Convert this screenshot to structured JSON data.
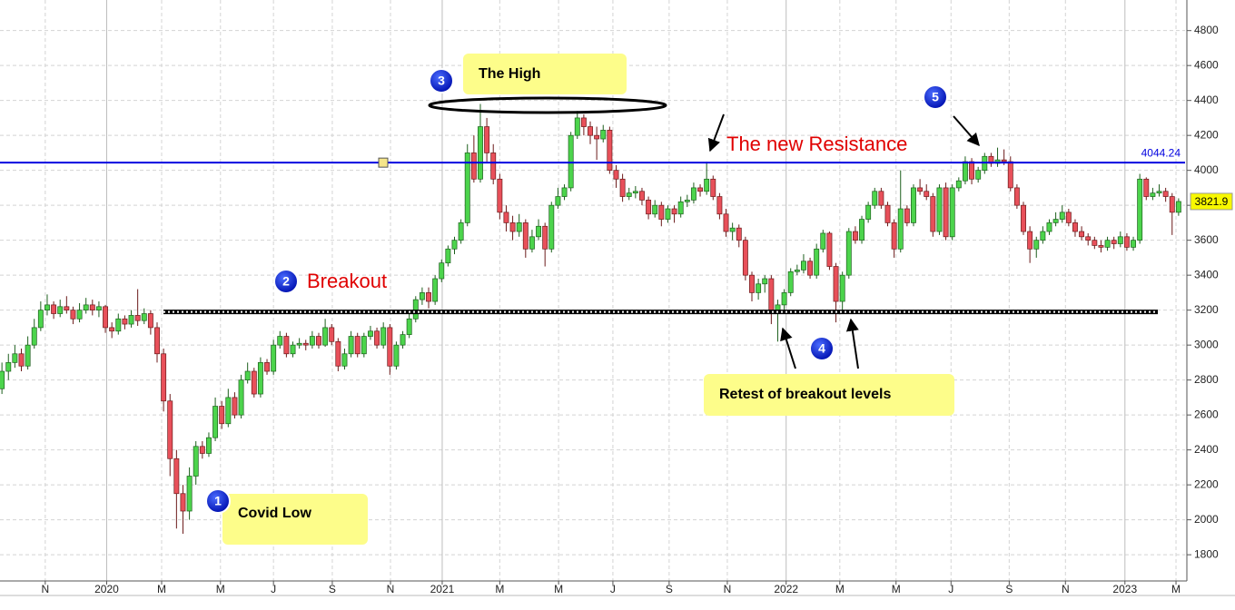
{
  "chart_data": {
    "type": "candlestick",
    "ylim": [
      1650,
      4975
    ],
    "yticks": [
      1800,
      2000,
      2200,
      2400,
      2600,
      2800,
      3000,
      3200,
      3400,
      3600,
      3800,
      4000,
      4200,
      4400,
      4600,
      4800
    ],
    "xlim": [
      -0.3,
      183
    ],
    "xticks": [
      {
        "value": 6.7,
        "label": "N"
      },
      {
        "value": 16.2,
        "label": "2020"
      },
      {
        "value": 24.7,
        "label": "M"
      },
      {
        "value": 33.8,
        "label": "M"
      },
      {
        "value": 42,
        "label": "J"
      },
      {
        "value": 51.1,
        "label": "S"
      },
      {
        "value": 60.1,
        "label": "N"
      },
      {
        "value": 68.1,
        "label": "2021"
      },
      {
        "value": 77,
        "label": "M"
      },
      {
        "value": 86.1,
        "label": "M"
      },
      {
        "value": 94.5,
        "label": "J"
      },
      {
        "value": 103.2,
        "label": "S"
      },
      {
        "value": 112.2,
        "label": "N"
      },
      {
        "value": 121.3,
        "label": "2022"
      },
      {
        "value": 129.6,
        "label": "M"
      },
      {
        "value": 138.3,
        "label": "M"
      },
      {
        "value": 146.8,
        "label": "J"
      },
      {
        "value": 155.8,
        "label": "S"
      },
      {
        "value": 164.5,
        "label": "N"
      },
      {
        "value": 173.7,
        "label": "2023"
      },
      {
        "value": 181.6,
        "label": "M"
      }
    ],
    "grid": true,
    "up_color": "#4cd44c",
    "down_color": "#e8505a",
    "resistance": 4044.24,
    "resistance_color": "#0000e0",
    "support": 3190,
    "annotations": [
      "The High",
      "Covid Low",
      "Breakout",
      "The new Resistance",
      "Retest of breakout levels"
    ],
    "markers": [
      "1",
      "2",
      "3",
      "4",
      "5"
    ],
    "ohlc": [
      [
        2750,
        2900,
        2720,
        2850
      ],
      [
        2850,
        2950,
        2800,
        2900
      ],
      [
        2900,
        3000,
        2870,
        2950
      ],
      [
        2950,
        2980,
        2850,
        2880
      ],
      [
        2880,
        3050,
        2860,
        3000
      ],
      [
        3000,
        3150,
        2980,
        3100
      ],
      [
        3100,
        3250,
        3080,
        3200
      ],
      [
        3200,
        3290,
        3170,
        3230
      ],
      [
        3230,
        3250,
        3150,
        3180
      ],
      [
        3180,
        3260,
        3160,
        3220
      ],
      [
        3220,
        3280,
        3180,
        3200
      ],
      [
        3200,
        3220,
        3120,
        3150
      ],
      [
        3150,
        3240,
        3130,
        3200
      ],
      [
        3200,
        3270,
        3180,
        3230
      ],
      [
        3230,
        3260,
        3170,
        3200
      ],
      [
        3200,
        3250,
        3160,
        3220
      ],
      [
        3220,
        3230,
        3070,
        3100
      ],
      [
        3100,
        3130,
        3040,
        3080
      ],
      [
        3080,
        3180,
        3060,
        3150
      ],
      [
        3150,
        3170,
        3090,
        3120
      ],
      [
        3120,
        3200,
        3100,
        3170
      ],
      [
        3170,
        3320,
        3110,
        3140
      ],
      [
        3140,
        3210,
        3120,
        3180
      ],
      [
        3180,
        3200,
        3060,
        3100
      ],
      [
        3100,
        3130,
        2900,
        2950
      ],
      [
        2950,
        2980,
        2620,
        2680
      ],
      [
        2680,
        2720,
        2250,
        2350
      ],
      [
        2350,
        2400,
        1950,
        2150
      ],
      [
        2150,
        2200,
        1920,
        2050
      ],
      [
        2050,
        2300,
        2000,
        2250
      ],
      [
        2250,
        2450,
        2200,
        2420
      ],
      [
        2420,
        2450,
        2350,
        2380
      ],
      [
        2380,
        2500,
        2360,
        2470
      ],
      [
        2470,
        2700,
        2450,
        2650
      ],
      [
        2650,
        2680,
        2520,
        2550
      ],
      [
        2550,
        2750,
        2530,
        2700
      ],
      [
        2700,
        2730,
        2580,
        2600
      ],
      [
        2600,
        2830,
        2580,
        2800
      ],
      [
        2800,
        2900,
        2780,
        2850
      ],
      [
        2850,
        2870,
        2700,
        2720
      ],
      [
        2720,
        2930,
        2700,
        2900
      ],
      [
        2900,
        2920,
        2830,
        2850
      ],
      [
        2850,
        3030,
        2830,
        3000
      ],
      [
        3000,
        3080,
        2980,
        3050
      ],
      [
        3050,
        3070,
        2930,
        2950
      ],
      [
        2950,
        3020,
        2930,
        3000
      ],
      [
        3000,
        3040,
        2980,
        3010
      ],
      [
        3010,
        3030,
        2970,
        3000
      ],
      [
        3000,
        3080,
        2980,
        3050
      ],
      [
        3050,
        3070,
        2980,
        3000
      ],
      [
        3000,
        3150,
        2990,
        3100
      ],
      [
        3100,
        3120,
        3000,
        3020
      ],
      [
        3020,
        3040,
        2850,
        2880
      ],
      [
        2880,
        2980,
        2860,
        2950
      ],
      [
        2950,
        3080,
        2930,
        3050
      ],
      [
        3050,
        3070,
        2930,
        2950
      ],
      [
        2950,
        3070,
        2930,
        3050
      ],
      [
        3050,
        3110,
        3030,
        3080
      ],
      [
        3080,
        3100,
        2980,
        3000
      ],
      [
        3000,
        3130,
        2980,
        3100
      ],
      [
        3100,
        3120,
        2830,
        2880
      ],
      [
        2880,
        3020,
        2860,
        3000
      ],
      [
        3000,
        3080,
        2980,
        3060
      ],
      [
        3060,
        3180,
        3040,
        3150
      ],
      [
        3150,
        3280,
        3130,
        3260
      ],
      [
        3260,
        3330,
        3230,
        3300
      ],
      [
        3300,
        3330,
        3210,
        3250
      ],
      [
        3250,
        3400,
        3230,
        3380
      ],
      [
        3380,
        3490,
        3360,
        3470
      ],
      [
        3470,
        3570,
        3450,
        3550
      ],
      [
        3550,
        3620,
        3520,
        3600
      ],
      [
        3600,
        3720,
        3580,
        3700
      ],
      [
        3700,
        4150,
        3680,
        4100
      ],
      [
        4100,
        4200,
        3930,
        3950
      ],
      [
        3950,
        4380,
        3930,
        4250
      ],
      [
        4250,
        4300,
        4050,
        4100
      ],
      [
        4100,
        4150,
        3920,
        3950
      ],
      [
        3950,
        3980,
        3720,
        3760
      ],
      [
        3760,
        3800,
        3650,
        3700
      ],
      [
        3700,
        3740,
        3600,
        3650
      ],
      [
        3650,
        3750,
        3620,
        3700
      ],
      [
        3700,
        3720,
        3500,
        3550
      ],
      [
        3550,
        3660,
        3530,
        3620
      ],
      [
        3620,
        3720,
        3600,
        3680
      ],
      [
        3680,
        3700,
        3450,
        3550
      ],
      [
        3550,
        3820,
        3530,
        3800
      ],
      [
        3800,
        3900,
        3780,
        3850
      ],
      [
        3850,
        3920,
        3830,
        3900
      ],
      [
        3900,
        4220,
        3880,
        4200
      ],
      [
        4200,
        4340,
        4180,
        4300
      ],
      [
        4300,
        4320,
        4200,
        4250
      ],
      [
        4250,
        4280,
        4150,
        4200
      ],
      [
        4200,
        4250,
        4060,
        4180
      ],
      [
        4180,
        4260,
        4160,
        4230
      ],
      [
        4230,
        4250,
        3980,
        4000
      ],
      [
        4000,
        4030,
        3900,
        3950
      ],
      [
        3950,
        3980,
        3820,
        3850
      ],
      [
        3850,
        3900,
        3830,
        3870
      ],
      [
        3870,
        3910,
        3840,
        3880
      ],
      [
        3880,
        3900,
        3800,
        3830
      ],
      [
        3830,
        3850,
        3720,
        3750
      ],
      [
        3750,
        3830,
        3730,
        3800
      ],
      [
        3800,
        3820,
        3680,
        3720
      ],
      [
        3720,
        3800,
        3700,
        3780
      ],
      [
        3780,
        3800,
        3700,
        3750
      ],
      [
        3750,
        3850,
        3730,
        3820
      ],
      [
        3820,
        3860,
        3790,
        3830
      ],
      [
        3830,
        3930,
        3810,
        3900
      ],
      [
        3900,
        3920,
        3850,
        3880
      ],
      [
        3880,
        4050,
        3860,
        3950
      ],
      [
        3950,
        3970,
        3830,
        3850
      ],
      [
        3850,
        3870,
        3720,
        3750
      ],
      [
        3750,
        3780,
        3620,
        3650
      ],
      [
        3650,
        3700,
        3600,
        3670
      ],
      [
        3670,
        3690,
        3560,
        3600
      ],
      [
        3600,
        3620,
        3370,
        3400
      ],
      [
        3400,
        3420,
        3250,
        3300
      ],
      [
        3300,
        3380,
        3260,
        3350
      ],
      [
        3350,
        3400,
        3300,
        3380
      ],
      [
        3380,
        3400,
        3120,
        3200
      ],
      [
        3200,
        3260,
        3020,
        3230
      ],
      [
        3230,
        3320,
        3200,
        3300
      ],
      [
        3300,
        3440,
        3280,
        3420
      ],
      [
        3420,
        3460,
        3400,
        3430
      ],
      [
        3430,
        3520,
        3410,
        3480
      ],
      [
        3480,
        3500,
        3380,
        3400
      ],
      [
        3400,
        3580,
        3380,
        3550
      ],
      [
        3550,
        3660,
        3530,
        3640
      ],
      [
        3640,
        3650,
        3430,
        3450
      ],
      [
        3450,
        3470,
        3130,
        3250
      ],
      [
        3250,
        3420,
        3180,
        3400
      ],
      [
        3400,
        3670,
        3380,
        3650
      ],
      [
        3650,
        3680,
        3580,
        3600
      ],
      [
        3600,
        3740,
        3580,
        3720
      ],
      [
        3720,
        3820,
        3700,
        3800
      ],
      [
        3800,
        3900,
        3780,
        3880
      ],
      [
        3880,
        3900,
        3780,
        3800
      ],
      [
        3800,
        3820,
        3680,
        3700
      ],
      [
        3700,
        3720,
        3500,
        3550
      ],
      [
        3550,
        4000,
        3530,
        3780
      ],
      [
        3780,
        3800,
        3680,
        3700
      ],
      [
        3700,
        3920,
        3680,
        3900
      ],
      [
        3900,
        3950,
        3860,
        3880
      ],
      [
        3880,
        3920,
        3830,
        3850
      ],
      [
        3850,
        3870,
        3620,
        3650
      ],
      [
        3650,
        3920,
        3630,
        3900
      ],
      [
        3900,
        3930,
        3600,
        3620
      ],
      [
        3620,
        3920,
        3600,
        3900
      ],
      [
        3900,
        3960,
        3880,
        3940
      ],
      [
        3940,
        4080,
        3920,
        4050
      ],
      [
        4050,
        4070,
        3920,
        3950
      ],
      [
        3950,
        4020,
        3930,
        4000
      ],
      [
        4000,
        4100,
        3980,
        4080
      ],
      [
        4080,
        4100,
        4020,
        4040
      ],
      [
        4040,
        4130,
        4020,
        4060
      ],
      [
        4060,
        4120,
        4030,
        4050
      ],
      [
        4050,
        4080,
        3880,
        3900
      ],
      [
        3900,
        3920,
        3780,
        3800
      ],
      [
        3800,
        3820,
        3630,
        3650
      ],
      [
        3650,
        3680,
        3470,
        3550
      ],
      [
        3550,
        3620,
        3500,
        3600
      ],
      [
        3600,
        3680,
        3580,
        3650
      ],
      [
        3650,
        3720,
        3630,
        3700
      ],
      [
        3700,
        3760,
        3680,
        3720
      ],
      [
        3720,
        3800,
        3700,
        3760
      ],
      [
        3760,
        3780,
        3680,
        3700
      ],
      [
        3700,
        3720,
        3620,
        3650
      ],
      [
        3650,
        3680,
        3600,
        3620
      ],
      [
        3620,
        3640,
        3570,
        3600
      ],
      [
        3600,
        3620,
        3550,
        3570
      ],
      [
        3570,
        3600,
        3530,
        3560
      ],
      [
        3560,
        3620,
        3540,
        3600
      ],
      [
        3600,
        3620,
        3550,
        3580
      ],
      [
        3580,
        3650,
        3560,
        3620
      ],
      [
        3620,
        3640,
        3540,
        3560
      ],
      [
        3560,
        3620,
        3540,
        3600
      ],
      [
        3600,
        3980,
        3580,
        3950
      ],
      [
        3950,
        3960,
        3830,
        3850
      ],
      [
        3850,
        3900,
        3830,
        3870
      ],
      [
        3870,
        3920,
        3850,
        3880
      ],
      [
        3880,
        3900,
        3820,
        3850
      ],
      [
        3850,
        3870,
        3630,
        3760
      ],
      [
        3760,
        3840,
        3740,
        3821.9
      ]
    ]
  }
}
